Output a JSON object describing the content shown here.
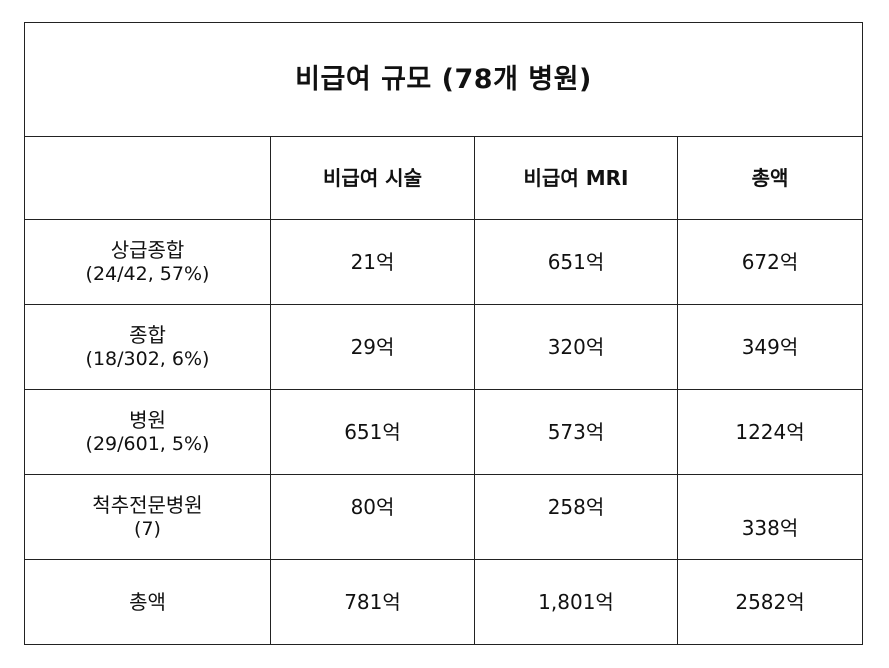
{
  "title": "비급여 규모 (78개 병원)",
  "columns": [
    "",
    "비급여 시술",
    "비급여 MRI",
    "총액"
  ],
  "rows": [
    {
      "label": "상급종합",
      "sub": "(24/42, 57%)",
      "values": [
        "21억",
        "651억",
        "672억"
      ]
    },
    {
      "label": "종합",
      "sub": "(18/302, 6%)",
      "values": [
        "29억",
        "320억",
        "349억"
      ]
    },
    {
      "label": "병원",
      "sub": "(29/601, 5%)",
      "values": [
        "651억",
        "573억",
        "1224억"
      ]
    },
    {
      "label": "척추전문병원",
      "sub": "(7)",
      "values": [
        "80억",
        "258억",
        "338억"
      ]
    },
    {
      "label": "총액",
      "sub": "",
      "values": [
        "781억",
        "1,801억",
        "2582억"
      ]
    }
  ]
}
